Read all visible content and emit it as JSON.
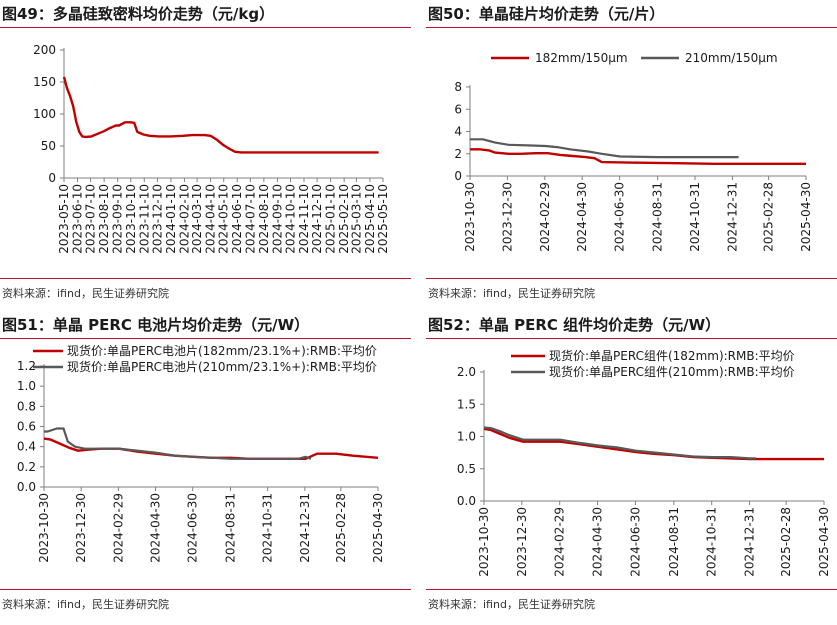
{
  "colors": {
    "red": "#c00000",
    "gray": "#595959",
    "accent": "#b5142a"
  },
  "charts": [
    {
      "title": "图49：多晶硅致密料均价走势（元/kg）",
      "source": "资料来源：ifind，民生证券研究院",
      "chart_data": {
        "type": "line",
        "ylim": [
          0,
          200
        ],
        "yticks": [
          "0",
          "50",
          "100",
          "150",
          "200"
        ],
        "xlim": [
          "2023-05-10",
          "2025-05-10"
        ],
        "xticks": [
          "2023-05-10",
          "2023-06-10",
          "2023-07-10",
          "2023-08-10",
          "2023-09-10",
          "2023-10-10",
          "2023-11-10",
          "2023-12-10",
          "2024-01-10",
          "2024-02-10",
          "2024-03-10",
          "2024-04-10",
          "2024-05-10",
          "2024-06-10",
          "2024-07-10",
          "2024-08-10",
          "2024-09-10",
          "2024-10-10",
          "2024-11-10",
          "2024-12-10",
          "2025-01-10",
          "2025-02-10",
          "2025-03-10",
          "2025-04-10",
          "2025-05-10"
        ],
        "series": [
          {
            "color": "red",
            "x": [
              "2023-05-10",
              "2023-05-17",
              "2023-05-24",
              "2023-05-31",
              "2023-06-07",
              "2023-06-14",
              "2023-06-21",
              "2023-06-28",
              "2023-07-12",
              "2023-07-26",
              "2023-08-09",
              "2023-08-23",
              "2023-09-06",
              "2023-09-13",
              "2023-09-27",
              "2023-10-11",
              "2023-10-18",
              "2023-10-25",
              "2023-11-08",
              "2023-11-22",
              "2023-12-13",
              "2024-01-03",
              "2024-01-10",
              "2024-02-07",
              "2024-02-28",
              "2024-03-13",
              "2024-03-20",
              "2024-03-27",
              "2024-04-10",
              "2024-04-24",
              "2024-05-08",
              "2024-05-22",
              "2024-06-05",
              "2024-06-19",
              "2024-07-10",
              "2024-08-07",
              "2024-09-04",
              "2024-10-02",
              "2024-11-06",
              "2024-12-04",
              "2025-01-08",
              "2025-02-05",
              "2025-03-05",
              "2025-04-02",
              "2025-04-30"
            ],
            "y": [
              158,
              140,
              128,
              112,
              88,
              72,
              65,
              64,
              65,
              69,
              73,
              78,
              82,
              82,
              87,
              87,
              86,
              72,
              68,
              66,
              65,
              65,
              65,
              66,
              67,
              67,
              67,
              67,
              66,
              60,
              52,
              46,
              41,
              40,
              40,
              40,
              40,
              40,
              40,
              40,
              40,
              40,
              40,
              40,
              40
            ]
          }
        ]
      }
    },
    {
      "title": "图50：单晶硅片均价走势（元/片）",
      "source": "资料来源：ifind，民生证券研究院",
      "chart_data": {
        "type": "line",
        "ylim": [
          0,
          8
        ],
        "yticks": [
          "0",
          "2",
          "4",
          "6",
          "8"
        ],
        "xlim": [
          "2023-10-30",
          "2025-04-30"
        ],
        "xticks": [
          "2023-10-30",
          "2023-12-30",
          "2024-02-29",
          "2024-04-30",
          "2024-06-30",
          "2024-08-31",
          "2024-10-31",
          "2024-12-31",
          "2025-02-28",
          "2025-04-30"
        ],
        "series": [
          {
            "name": "182mm/150μm",
            "color": "red",
            "x": [
              "2023-10-30",
              "2023-11-15",
              "2023-11-30",
              "2023-12-10",
              "2024-01-01",
              "2024-01-20",
              "2024-02-15",
              "2024-03-05",
              "2024-03-25",
              "2024-04-15",
              "2024-05-05",
              "2024-05-20",
              "2024-06-01",
              "2024-08-01",
              "2024-10-01",
              "2024-12-01",
              "2025-02-01",
              "2025-04-30"
            ],
            "y": [
              2.4,
              2.4,
              2.3,
              2.1,
              2.0,
              2.0,
              2.05,
              2.05,
              1.9,
              1.8,
              1.7,
              1.6,
              1.25,
              1.2,
              1.15,
              1.1,
              1.1,
              1.1
            ]
          },
          {
            "name": "210mm/150μm",
            "color": "gray",
            "x": [
              "2023-10-30",
              "2023-11-20",
              "2023-12-10",
              "2024-01-01",
              "2024-02-01",
              "2024-03-01",
              "2024-03-20",
              "2024-04-10",
              "2024-05-10",
              "2024-06-01",
              "2024-07-01",
              "2024-09-01",
              "2024-11-01",
              "2025-01-10"
            ],
            "y": [
              3.3,
              3.3,
              3.0,
              2.8,
              2.75,
              2.7,
              2.6,
              2.4,
              2.2,
              2.0,
              1.75,
              1.7,
              1.7,
              1.7
            ]
          }
        ]
      }
    },
    {
      "title": "图51：单晶 PERC 电池片均价走势（元/W）",
      "source": "资料来源：ifind，民生证券研究院",
      "chart_data": {
        "type": "line",
        "ylim": [
          0,
          1.2
        ],
        "yticks": [
          "0.0",
          "0.2",
          "0.4",
          "0.6",
          "0.8",
          "1.0",
          "1.2"
        ],
        "xlim": [
          "2023-10-30",
          "2025-04-30"
        ],
        "xticks": [
          "2023-10-30",
          "2023-12-30",
          "2024-02-29",
          "2024-04-30",
          "2024-06-30",
          "2024-08-31",
          "2024-10-31",
          "2024-12-31",
          "2025-02-28",
          "2025-04-30"
        ],
        "series": [
          {
            "name": "现货价:单晶PERC电池片(182mm/23.1%+):RMB:平均价",
            "color": "red",
            "x": [
              "2023-10-30",
              "2023-11-10",
              "2023-11-25",
              "2023-12-10",
              "2023-12-25",
              "2024-01-10",
              "2024-02-01",
              "2024-03-01",
              "2024-04-01",
              "2024-05-01",
              "2024-06-01",
              "2024-07-01",
              "2024-08-01",
              "2024-09-01",
              "2024-10-01",
              "2024-11-01",
              "2024-12-01",
              "2025-01-01",
              "2025-01-20",
              "2025-02-20",
              "2025-03-20",
              "2025-04-30"
            ],
            "y": [
              0.48,
              0.47,
              0.43,
              0.39,
              0.36,
              0.37,
              0.38,
              0.38,
              0.35,
              0.33,
              0.31,
              0.3,
              0.29,
              0.29,
              0.28,
              0.28,
              0.28,
              0.28,
              0.33,
              0.33,
              0.31,
              0.29
            ]
          },
          {
            "name": "现货价:单晶PERC电池片(210mm/23.1%+):RMB:平均价",
            "color": "gray",
            "x": [
              "2023-10-30",
              "2023-11-05",
              "2023-11-20",
              "2023-12-01",
              "2023-12-08",
              "2023-12-20",
              "2024-01-05",
              "2024-02-01",
              "2024-03-01",
              "2024-04-01",
              "2024-05-01",
              "2024-06-01",
              "2024-07-01",
              "2024-08-01",
              "2024-09-01",
              "2024-10-01",
              "2024-11-01",
              "2024-12-01",
              "2024-12-20",
              "2025-01-01",
              "2025-01-10"
            ],
            "y": [
              0.55,
              0.55,
              0.58,
              0.58,
              0.45,
              0.4,
              0.38,
              0.38,
              0.38,
              0.36,
              0.34,
              0.31,
              0.3,
              0.29,
              0.28,
              0.28,
              0.28,
              0.28,
              0.28,
              0.3,
              0.28
            ]
          }
        ]
      }
    },
    {
      "title": "图52：单晶 PERC 组件均价走势（元/W）",
      "source": "资料来源：ifind，民生证券研究院",
      "chart_data": {
        "type": "line",
        "ylim": [
          0,
          2
        ],
        "yticks": [
          "0.0",
          "0.5",
          "1.0",
          "1.5",
          "2.0"
        ],
        "xlim": [
          "2023-10-30",
          "2025-04-30"
        ],
        "xticks": [
          "2023-10-30",
          "2023-12-30",
          "2024-02-29",
          "2024-04-30",
          "2024-06-30",
          "2024-08-31",
          "2024-10-31",
          "2024-12-31",
          "2025-02-28",
          "2025-04-30"
        ],
        "series": [
          {
            "name": "现货价:单晶PERC组件(182mm):RMB:平均价",
            "color": "red",
            "x": [
              "2023-10-30",
              "2023-11-10",
              "2023-11-25",
              "2023-12-10",
              "2024-01-01",
              "2024-02-01",
              "2024-03-01",
              "2024-04-01",
              "2024-05-01",
              "2024-06-01",
              "2024-07-01",
              "2024-08-01",
              "2024-09-01",
              "2024-10-01",
              "2024-11-01",
              "2024-12-01",
              "2025-01-01",
              "2025-02-01",
              "2025-03-01",
              "2025-04-30"
            ],
            "y": [
              1.12,
              1.1,
              1.04,
              0.98,
              0.92,
              0.92,
              0.92,
              0.88,
              0.84,
              0.8,
              0.76,
              0.73,
              0.71,
              0.68,
              0.67,
              0.66,
              0.65,
              0.65,
              0.65,
              0.65
            ]
          },
          {
            "name": "现货价:单晶PERC组件(210mm):RMB:平均价",
            "color": "gray",
            "x": [
              "2023-10-30",
              "2023-11-10",
              "2023-11-25",
              "2023-12-10",
              "2024-01-01",
              "2024-02-01",
              "2024-03-01",
              "2024-04-01",
              "2024-05-01",
              "2024-06-01",
              "2024-07-01",
              "2024-08-01",
              "2024-09-01",
              "2024-10-01",
              "2024-11-01",
              "2024-12-01",
              "2024-12-31",
              "2025-01-10"
            ],
            "y": [
              1.14,
              1.13,
              1.08,
              1.02,
              0.95,
              0.95,
              0.95,
              0.9,
              0.86,
              0.83,
              0.78,
              0.75,
              0.72,
              0.69,
              0.68,
              0.68,
              0.66,
              0.66
            ]
          }
        ]
      }
    }
  ]
}
